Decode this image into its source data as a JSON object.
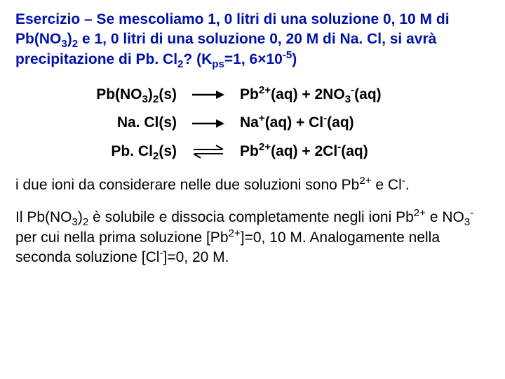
{
  "colors": {
    "problem_text": "#0011aa",
    "body_text": "#000000",
    "background": "#ffffff",
    "arrow": "#000000"
  },
  "typography": {
    "font_family": "Comic Sans MS",
    "base_fontsize_pt": 16,
    "bold_elements": [
      "problem",
      "equations"
    ]
  },
  "problem": {
    "html": "Esercizio – Se mescoliamo 1, 0 litri di una soluzione 0, 10 M di Pb(NO<sub>3</sub>)<sub>2</sub> e 1, 0 litri di una soluzione 0, 20 M di Na. Cl, si avrà precipitazione di Pb. Cl<sub>2</sub>? (K<sub>ps</sub>=1, 6×10<sup>-5</sup>)"
  },
  "equations": [
    {
      "left_html": "Pb(NO<sub>3</sub>)<sub>2</sub>(s)",
      "arrow_type": "forward",
      "right_html": "Pb<sup>2+</sup>(aq) + 2NO<sub>3</sub><sup>-</sup>(aq)"
    },
    {
      "left_html": "Na. Cl(s)",
      "arrow_type": "forward",
      "right_html": "Na<sup>+</sup>(aq) + Cl<sup>-</sup>(aq)"
    },
    {
      "left_html": "Pb. Cl<sub>2</sub>(s)",
      "arrow_type": "equilibrium",
      "right_html": "Pb<sup>2+</sup>(aq) + 2Cl<sup>-</sup>(aq)"
    }
  ],
  "paragraphs": [
    {
      "html": "i due ioni da considerare nelle due soluzioni sono Pb<sup>2+</sup> e Cl<sup>-</sup>."
    },
    {
      "html": "Il Pb(NO<sub>3</sub>)<sub>2</sub> è solubile e dissocia completamente negli ioni Pb<sup>2+</sup> e NO<sub>3</sub><sup>-</sup> per cui nella prima soluzione [Pb<sup>2+</sup>]=0, 10 M. Analogamente nella seconda soluzione [Cl<sup>-</sup>]=0, 20 M."
    }
  ],
  "arrows": {
    "forward": {
      "stroke_width": 2.4,
      "color": "#000000",
      "length": 50
    },
    "equilibrium": {
      "stroke_width": 2.0,
      "color": "#000000",
      "length": 50,
      "gap": 6
    }
  }
}
